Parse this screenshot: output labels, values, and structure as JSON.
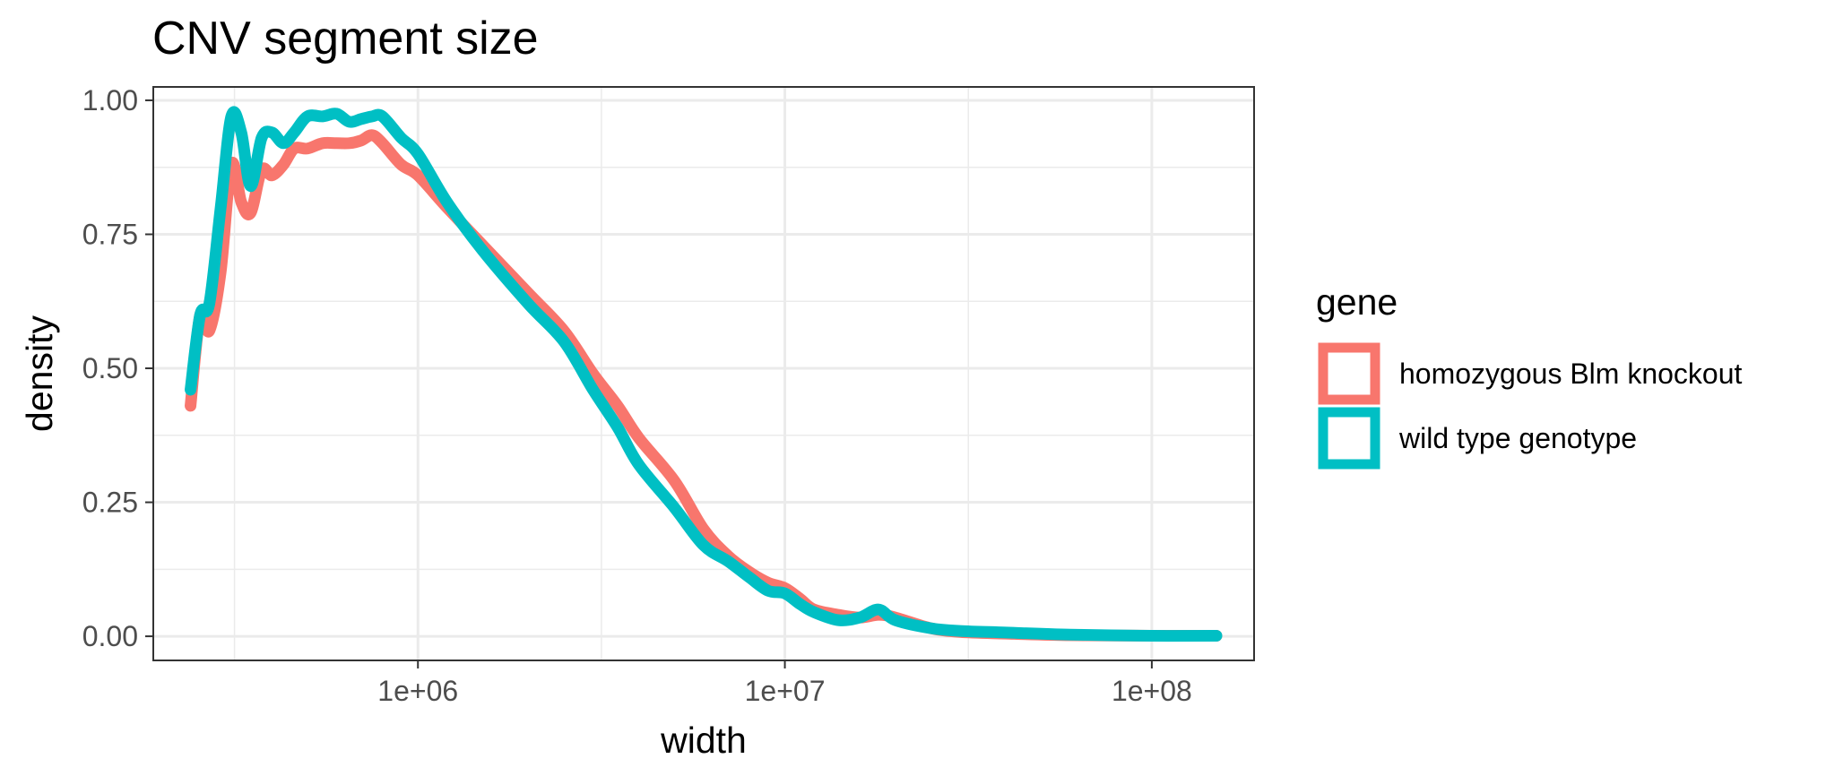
{
  "chart_data": {
    "type": "line",
    "title": "CNV segment size",
    "xlabel": "width",
    "ylabel": "density",
    "x_scale": "log10",
    "xlim": [
      190000,
      190000000
    ],
    "ylim": [
      -0.045,
      1.025
    ],
    "x_ticks": [
      {
        "value": 1000000,
        "label": "1e+06"
      },
      {
        "value": 10000000,
        "label": "1e+07"
      },
      {
        "value": 100000000,
        "label": "1e+08"
      }
    ],
    "y_ticks": [
      {
        "value": 0.0,
        "label": "0.00"
      },
      {
        "value": 0.25,
        "label": "0.25"
      },
      {
        "value": 0.5,
        "label": "0.50"
      },
      {
        "value": 0.75,
        "label": "0.75"
      },
      {
        "value": 1.0,
        "label": "1.00"
      }
    ],
    "grid": true,
    "legend": {
      "title": "gene",
      "position": "right"
    },
    "series": [
      {
        "name": "homozygous Blm knockout",
        "color": "#F8766D",
        "x": [
          240000,
          255000,
          270000,
          290000,
          310000,
          330000,
          350000,
          375000,
          400000,
          430000,
          460000,
          500000,
          550000,
          600000,
          650000,
          700000,
          750000,
          800000,
          900000,
          1000000,
          1200000,
          1500000,
          2000000,
          2500000,
          3000000,
          3500000,
          4000000,
          5000000,
          6000000,
          7000000,
          8000000,
          9000000,
          10000000,
          11000000,
          12000000,
          14000000,
          16000000,
          18000000,
          20000000,
          25000000,
          30000000,
          40000000,
          60000000,
          100000000,
          150000000
        ],
        "y": [
          0.43,
          0.6,
          0.57,
          0.68,
          0.88,
          0.81,
          0.79,
          0.87,
          0.86,
          0.88,
          0.91,
          0.91,
          0.92,
          0.92,
          0.92,
          0.925,
          0.935,
          0.92,
          0.88,
          0.86,
          0.8,
          0.73,
          0.64,
          0.57,
          0.49,
          0.43,
          0.37,
          0.29,
          0.2,
          0.15,
          0.12,
          0.1,
          0.09,
          0.07,
          0.05,
          0.04,
          0.035,
          0.04,
          0.035,
          0.015,
          0.008,
          0.005,
          0.002,
          0.001,
          0.001
        ]
      },
      {
        "name": "wild type genotype",
        "color": "#00BFC4",
        "x": [
          240000,
          255000,
          270000,
          290000,
          310000,
          330000,
          350000,
          375000,
          400000,
          430000,
          460000,
          500000,
          550000,
          600000,
          650000,
          700000,
          750000,
          800000,
          900000,
          1000000,
          1200000,
          1500000,
          2000000,
          2500000,
          3000000,
          3500000,
          4000000,
          5000000,
          6000000,
          7000000,
          8000000,
          9000000,
          10000000,
          11000000,
          12000000,
          14000000,
          16000000,
          18000000,
          20000000,
          25000000,
          30000000,
          40000000,
          60000000,
          100000000,
          150000000
        ],
        "y": [
          0.46,
          0.6,
          0.62,
          0.8,
          0.97,
          0.94,
          0.84,
          0.93,
          0.94,
          0.92,
          0.94,
          0.97,
          0.97,
          0.975,
          0.96,
          0.965,
          0.97,
          0.97,
          0.93,
          0.9,
          0.81,
          0.72,
          0.62,
          0.55,
          0.46,
          0.39,
          0.32,
          0.24,
          0.17,
          0.14,
          0.11,
          0.085,
          0.08,
          0.06,
          0.045,
          0.03,
          0.035,
          0.05,
          0.03,
          0.015,
          0.01,
          0.007,
          0.003,
          0.001,
          0.001
        ]
      }
    ]
  }
}
